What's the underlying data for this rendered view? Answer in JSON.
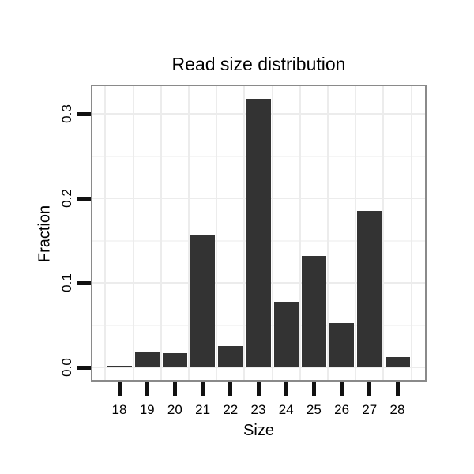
{
  "chart_data": {
    "type": "bar",
    "title": "Read size distribution",
    "xlabel": "Size",
    "ylabel": "Fraction",
    "categories": [
      "18",
      "19",
      "20",
      "21",
      "22",
      "23",
      "24",
      "25",
      "26",
      "27",
      "28"
    ],
    "values": [
      0.002,
      0.019,
      0.017,
      0.156,
      0.025,
      0.318,
      0.078,
      0.132,
      0.052,
      0.185,
      0.012
    ],
    "ytick_labels": [
      "0.0",
      "0.1",
      "0.2",
      "0.3"
    ],
    "ytick_values": [
      0.0,
      0.1,
      0.2,
      0.3
    ],
    "minor_gridline_values": [
      0.05,
      0.15,
      0.25
    ],
    "ylim": [
      0,
      0.333
    ],
    "grid": "major-and-minor, very light gray, vertical lines at category boundaries",
    "legend_position": "none",
    "bar_color": "#333333"
  },
  "colors": {
    "bar": "#333333",
    "panel_border": "#8a8a8a",
    "grid_major": "#ececec",
    "grid_minor": "#f5f5f5",
    "tick": "#111111",
    "text": "#000000",
    "background": "#ffffff"
  }
}
